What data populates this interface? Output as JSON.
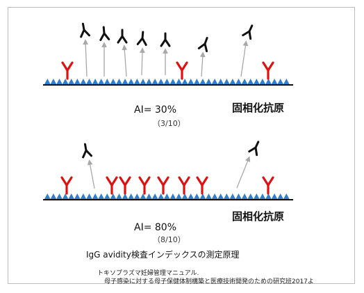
{
  "panel1": {
    "antigen_label": "固相化抗原",
    "ai_label": "AI= 30%",
    "ratio_label": "（3/10）"
  },
  "panel2": {
    "antigen_label": "固相化抗原",
    "ai_label": "AI= 80%",
    "ratio_label": "（8/10）"
  },
  "caption": "IgG avidity検査インデックスの測定原理",
  "reference": {
    "line1": "トキソプラズマ妊婦管理マニュアル.",
    "line2": "母子感染に対する母子保健体制構築と医療技術開発のための研究班2017よ"
  },
  "colors": {
    "antigen": "#2f7fd1",
    "bound_antibody": "#e01010",
    "free_antibody": "#111111",
    "arrow": "#a8a8a8",
    "surface": "#111111"
  }
}
